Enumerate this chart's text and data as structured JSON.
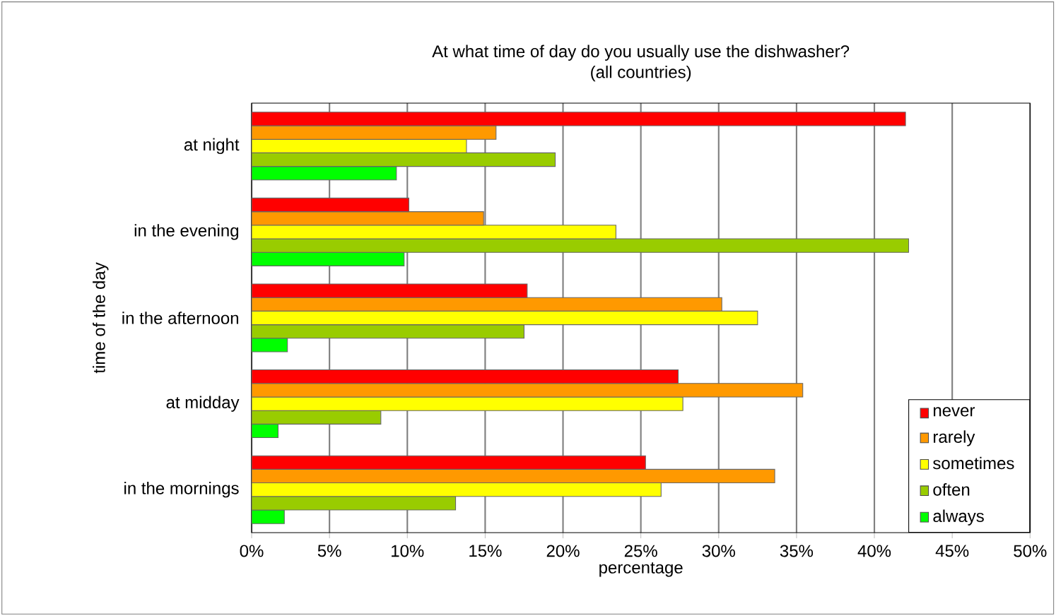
{
  "chart_data": {
    "type": "bar",
    "orientation": "horizontal",
    "title": "At what time of day do you usually use the dishwasher?",
    "subtitle": "(all countries)",
    "xlabel": "percentage",
    "ylabel": "time of the day",
    "categories": [
      "at night",
      "in the evening",
      "in the afternoon",
      "at midday",
      "in the mornings"
    ],
    "series": [
      {
        "name": "never",
        "color": "#ff0000",
        "values": [
          42.0,
          10.1,
          17.7,
          27.4,
          25.3
        ]
      },
      {
        "name": "rarely",
        "color": "#ff9900",
        "values": [
          15.7,
          14.9,
          30.2,
          35.4,
          33.6
        ]
      },
      {
        "name": "sometimes",
        "color": "#ffff00",
        "values": [
          13.8,
          23.4,
          32.5,
          27.7,
          26.3
        ]
      },
      {
        "name": "often",
        "color": "#99cc00",
        "values": [
          19.5,
          42.2,
          17.5,
          8.3,
          13.1
        ]
      },
      {
        "name": "always",
        "color": "#00ff00",
        "values": [
          9.3,
          9.8,
          2.3,
          1.7,
          2.1
        ]
      }
    ],
    "xlim": [
      0,
      50
    ],
    "xticks": [
      {
        "value": 0,
        "label": "0%"
      },
      {
        "value": 5,
        "label": "5%"
      },
      {
        "value": 10,
        "label": "10%"
      },
      {
        "value": 15,
        "label": "15%"
      },
      {
        "value": 20,
        "label": "20%"
      },
      {
        "value": 25,
        "label": "25%"
      },
      {
        "value": 30,
        "label": "30%"
      },
      {
        "value": 35,
        "label": "35%"
      },
      {
        "value": 40,
        "label": "40%"
      },
      {
        "value": 45,
        "label": "45%"
      },
      {
        "value": 50,
        "label": "50%"
      }
    ],
    "grid": "x",
    "legend": "bottom right"
  }
}
